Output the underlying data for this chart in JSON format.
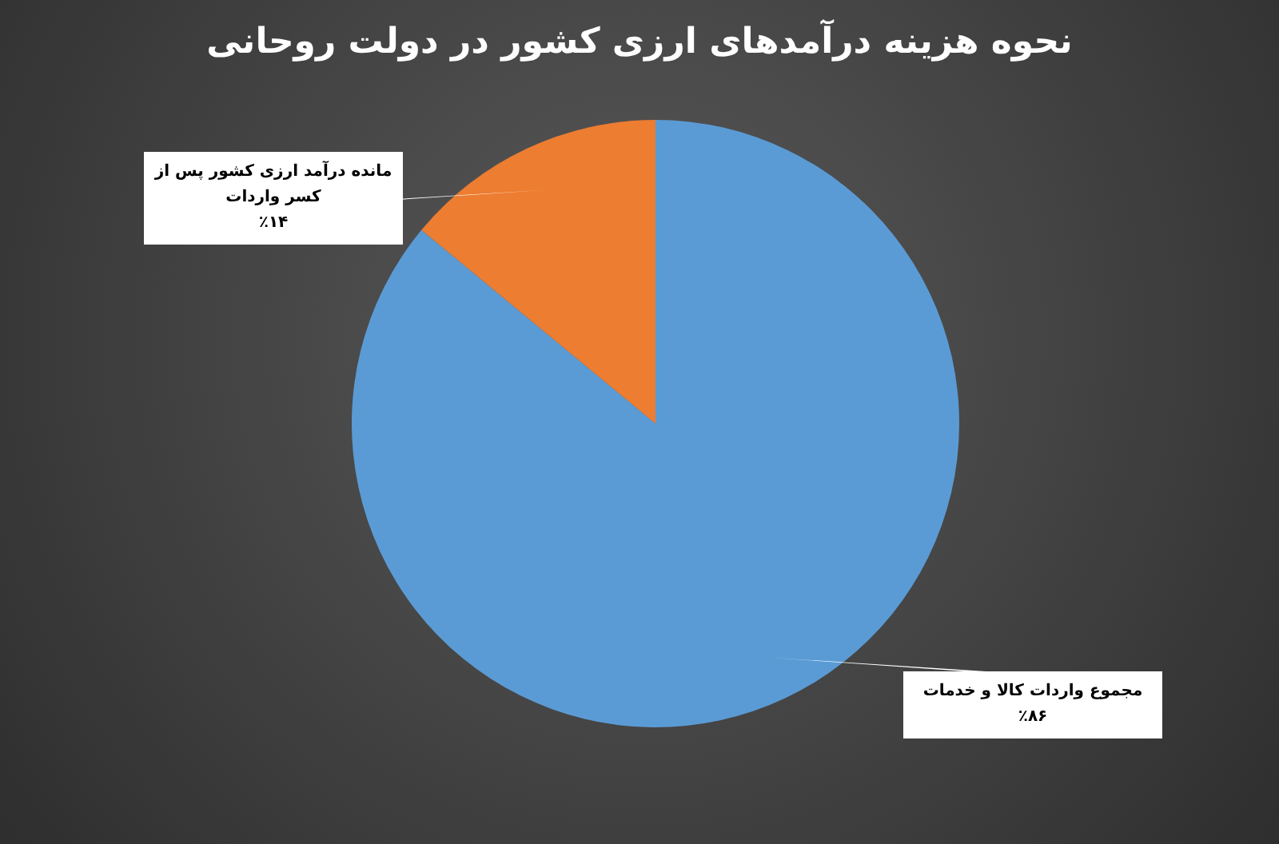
{
  "chart_data": {
    "type": "pie",
    "title": "نحوه هزینه درآمدهای ارزی کشور در دولت روحانی",
    "categories": [
      "مجموع واردات کالا و خدمات",
      "مانده درآمد ارزی کشور پس از کسر واردات"
    ],
    "values": [
      86,
      14
    ],
    "colors": [
      "#5b9bd5",
      "#ed7d31"
    ],
    "value_labels": [
      "٪۸۶",
      "٪۱۴"
    ]
  }
}
